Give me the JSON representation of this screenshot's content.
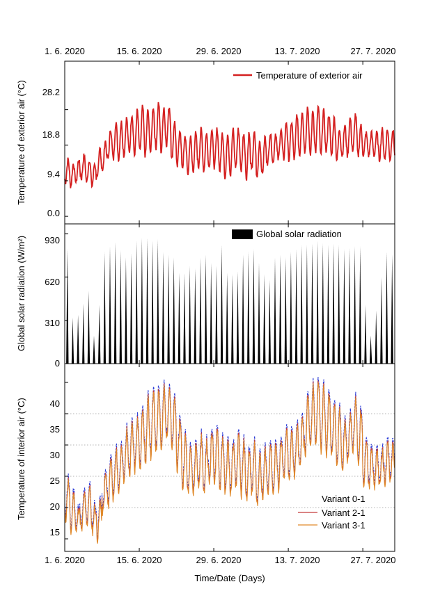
{
  "chart_data": {
    "type": "line",
    "top_date_ticks": [
      "1. 6. 2020",
      "15. 6. 2020",
      "29. 6. 2020",
      "13. 7. 2020",
      "27. 7. 2020"
    ],
    "bottom_date_ticks": [
      "1. 6. 2020",
      "15. 6. 2020",
      "29. 6. 2020",
      "13. 7. 2020",
      "27. 7. 2020"
    ],
    "xlabel": "Time/Date (Days)",
    "xlim_days": [
      0,
      62
    ],
    "panels": [
      {
        "id": "exterior",
        "type": "line",
        "ylabel": "Temperature of exterior air (°C)",
        "ylim": [
          -2,
          41
        ],
        "yticks": [
          0.0,
          9.4,
          18.8,
          28.2
        ],
        "ytick_labels": [
          "0.0",
          "9.4",
          "18.8",
          "28.2"
        ],
        "legend": "Temperature of exterior air",
        "color": "#d42020",
        "daily_mean": [
          12,
          11,
          12,
          13,
          12,
          11,
          14,
          16,
          19,
          20,
          20,
          21,
          22,
          22,
          23,
          22,
          23,
          24,
          23,
          24,
          20,
          18,
          17,
          16,
          17,
          18,
          17,
          18,
          18,
          17,
          16,
          17,
          18,
          17,
          16,
          17,
          15,
          16,
          18,
          18,
          19,
          20,
          20,
          21,
          22,
          23,
          22,
          23,
          22,
          22,
          21,
          19,
          20,
          21,
          22,
          20,
          19,
          19,
          19,
          19,
          19,
          19,
          19
        ],
        "daily_amplitude": [
          3,
          3,
          3,
          3,
          3,
          3,
          4,
          4,
          4,
          5,
          5,
          5,
          5,
          6,
          6,
          6,
          6,
          6,
          6,
          5,
          5,
          5,
          4,
          5,
          5,
          5,
          5,
          5,
          5,
          5,
          6,
          6,
          5,
          5,
          6,
          5,
          5,
          5,
          4,
          4,
          4,
          5,
          5,
          6,
          6,
          6,
          6,
          6,
          6,
          5,
          5,
          4,
          4,
          5,
          5,
          4,
          3,
          3,
          3,
          4,
          4,
          4,
          4
        ]
      },
      {
        "id": "solar",
        "type": "bar",
        "ylabel": "Global solar radiation (W/m²)",
        "ylim": [
          0,
          1000
        ],
        "yticks": [
          0,
          310,
          620,
          930
        ],
        "ytick_labels": [
          "0",
          "310",
          "620",
          "930"
        ],
        "legend": "Global solar radiation",
        "color": "#000000",
        "daily_peak": [
          820,
          330,
          350,
          430,
          520,
          200,
          420,
          800,
          840,
          870,
          810,
          760,
          790,
          880,
          900,
          900,
          880,
          890,
          800,
          780,
          760,
          650,
          650,
          700,
          680,
          760,
          780,
          720,
          700,
          850,
          650,
          640,
          660,
          780,
          800,
          820,
          720,
          640,
          600,
          760,
          780,
          760,
          800,
          820,
          850,
          850,
          860,
          880,
          860,
          850,
          860,
          850,
          820,
          830,
          840,
          840,
          420,
          200,
          380,
          620,
          800,
          780,
          300
        ]
      },
      {
        "id": "interior",
        "type": "line",
        "ylabel": "Temperature of interior air (°C)",
        "ylim": [
          13,
          43
        ],
        "yticks": [
          15,
          20,
          25,
          30,
          35,
          40
        ],
        "ytick_labels": [
          "15",
          "20",
          "25",
          "30",
          "35",
          "40"
        ],
        "grid_y": [
          20,
          25,
          30,
          35
        ],
        "daily_mean": [
          21,
          19,
          18,
          19,
          20,
          18,
          18,
          22,
          24,
          25,
          26,
          28,
          29,
          30,
          31,
          32,
          33,
          34,
          34,
          35,
          33,
          30,
          27,
          26,
          26,
          27,
          26,
          28,
          28,
          27,
          26,
          26,
          27,
          26,
          25,
          26,
          24,
          25,
          26,
          26,
          27,
          28,
          28,
          29,
          30,
          33,
          34,
          35,
          34,
          33,
          32,
          31,
          30,
          31,
          33,
          31,
          27,
          26,
          26,
          26,
          27,
          27,
          27
        ],
        "daily_amplitude": [
          3,
          3,
          2,
          3,
          3,
          2,
          3,
          3,
          4,
          4,
          4,
          4,
          4,
          4,
          5,
          5,
          5,
          5,
          5,
          4,
          4,
          4,
          4,
          4,
          4,
          4,
          4,
          4,
          4,
          4,
          4,
          4,
          4,
          4,
          4,
          4,
          4,
          4,
          4,
          4,
          4,
          4,
          4,
          4,
          4,
          5,
          5,
          5,
          5,
          5,
          4,
          4,
          4,
          4,
          4,
          4,
          4,
          3,
          3,
          3,
          3,
          3,
          3
        ],
        "series": [
          {
            "name": "Variant 0-1",
            "color": "#2a3bd6",
            "offset": 0.9
          },
          {
            "name": "Variant 2-1",
            "color": "#c43a3a",
            "offset": 0.3
          },
          {
            "name": "Variant 3-1",
            "color": "#e08a2a",
            "offset": 0.0
          }
        ]
      }
    ]
  }
}
